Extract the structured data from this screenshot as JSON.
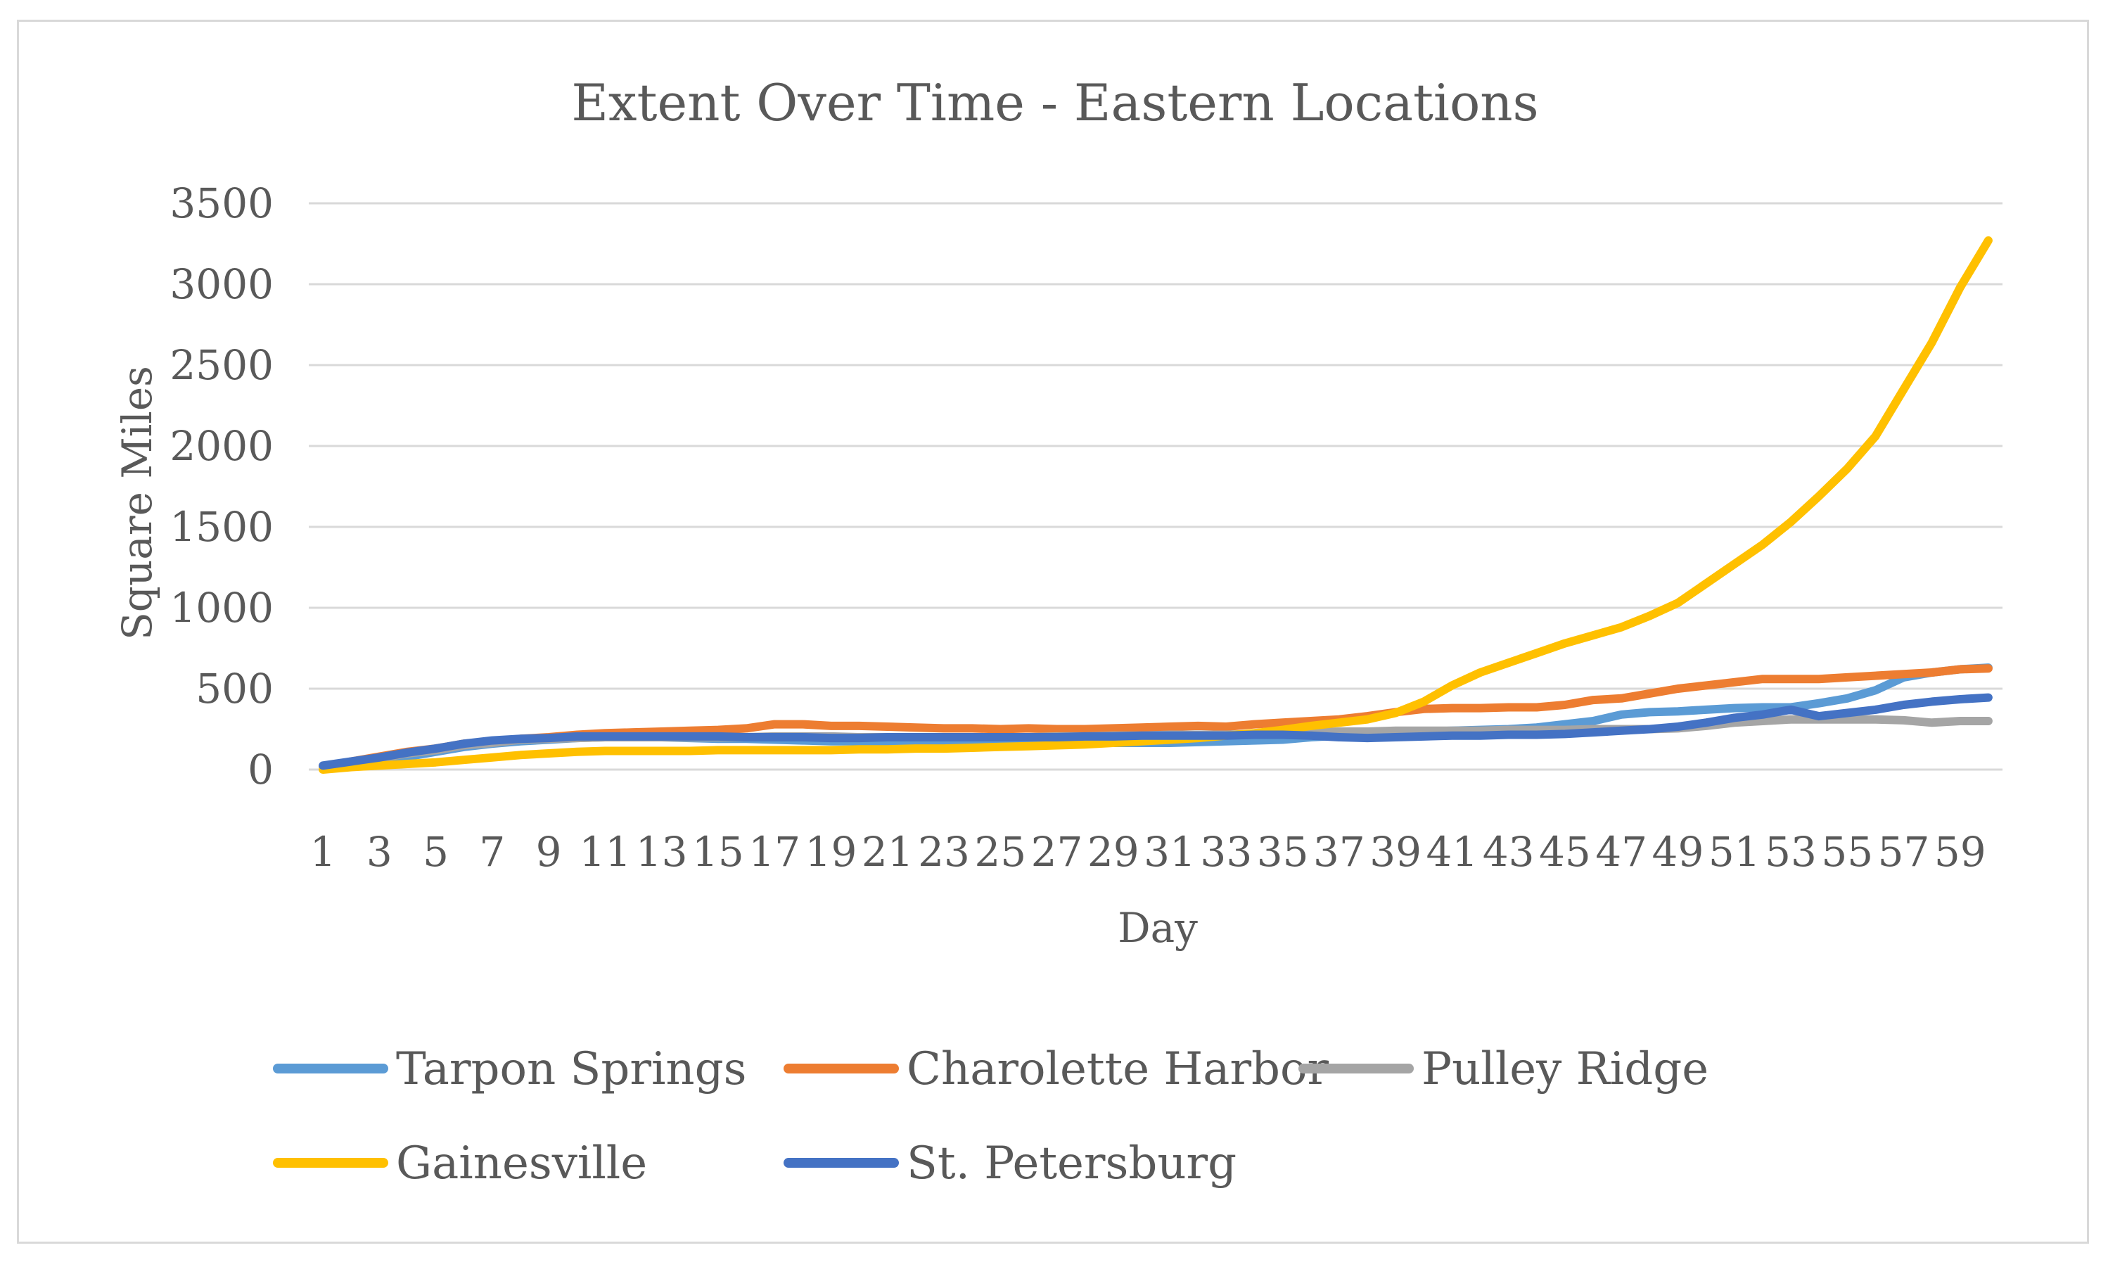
{
  "chart_data": {
    "type": "line",
    "title": "Extent Over Time - Eastern Locations",
    "xlabel": "Day",
    "ylabel": "Square Miles",
    "ylim": [
      0,
      3500
    ],
    "yticks": [
      0,
      500,
      1000,
      1500,
      2000,
      2500,
      3000,
      3500
    ],
    "x": [
      1,
      2,
      3,
      4,
      5,
      6,
      7,
      8,
      9,
      10,
      11,
      12,
      13,
      14,
      15,
      16,
      17,
      18,
      19,
      20,
      21,
      22,
      23,
      24,
      25,
      26,
      27,
      28,
      29,
      30,
      31,
      32,
      33,
      34,
      35,
      36,
      37,
      38,
      39,
      40,
      41,
      42,
      43,
      44,
      45,
      46,
      47,
      48,
      49,
      50,
      51,
      52,
      53,
      54,
      55,
      56,
      57,
      58,
      59,
      60
    ],
    "xtick_labels": [
      "1",
      "3",
      "5",
      "7",
      "9",
      "11",
      "13",
      "15",
      "17",
      "19",
      "21",
      "23",
      "25",
      "27",
      "29",
      "31",
      "33",
      "35",
      "37",
      "39",
      "41",
      "43",
      "45",
      "47",
      "49",
      "51",
      "53",
      "55",
      "57",
      "59"
    ],
    "grid": true,
    "legend_position": "bottom",
    "series": [
      {
        "name": "Tarpon Springs",
        "color": "#5b9bd5",
        "values": [
          20,
          40,
          60,
          80,
          110,
          140,
          160,
          175,
          185,
          195,
          200,
          200,
          200,
          195,
          190,
          190,
          185,
          180,
          175,
          175,
          175,
          170,
          165,
          165,
          160,
          155,
          160,
          165,
          165,
          165,
          165,
          170,
          175,
          180,
          185,
          200,
          210,
          220,
          230,
          235,
          240,
          245,
          250,
          260,
          280,
          300,
          340,
          355,
          360,
          370,
          380,
          385,
          385,
          410,
          440,
          490,
          570,
          600,
          620,
          630
        ]
      },
      {
        "name": "Charolette Harbor",
        "color": "#ed7d31",
        "values": [
          20,
          50,
          80,
          110,
          130,
          160,
          175,
          190,
          200,
          215,
          225,
          230,
          235,
          240,
          245,
          255,
          280,
          280,
          270,
          270,
          265,
          260,
          255,
          255,
          250,
          255,
          250,
          250,
          255,
          260,
          265,
          270,
          265,
          280,
          290,
          300,
          310,
          330,
          355,
          375,
          380,
          380,
          385,
          385,
          400,
          430,
          440,
          470,
          500,
          520,
          540,
          560,
          560,
          560,
          570,
          580,
          590,
          600,
          620,
          625
        ]
      },
      {
        "name": "Pulley Ridge",
        "color": "#a5a5a5",
        "values": [
          20,
          45,
          70,
          100,
          120,
          150,
          165,
          185,
          190,
          195,
          200,
          200,
          200,
          200,
          200,
          200,
          205,
          205,
          205,
          200,
          200,
          200,
          200,
          200,
          200,
          200,
          205,
          205,
          210,
          210,
          215,
          215,
          215,
          220,
          225,
          230,
          235,
          235,
          240,
          240,
          240,
          240,
          245,
          245,
          245,
          250,
          250,
          250,
          255,
          270,
          290,
          300,
          310,
          310,
          310,
          310,
          305,
          290,
          300,
          300
        ]
      },
      {
        "name": "Gainesville",
        "color": "#ffc000",
        "values": [
          0,
          15,
          25,
          35,
          45,
          60,
          75,
          90,
          100,
          110,
          115,
          115,
          115,
          115,
          120,
          120,
          120,
          120,
          120,
          125,
          125,
          130,
          130,
          135,
          140,
          145,
          150,
          155,
          165,
          175,
          185,
          195,
          210,
          225,
          245,
          270,
          290,
          310,
          350,
          420,
          520,
          600,
          660,
          720,
          780,
          830,
          880,
          950,
          1030,
          1150,
          1270,
          1390,
          1530,
          1690,
          1860,
          2060,
          2350,
          2640,
          2980,
          3270
        ]
      },
      {
        "name": "St. Petersburg",
        "color": "#4472c4",
        "values": [
          25,
          50,
          75,
          105,
          130,
          160,
          180,
          190,
          195,
          205,
          205,
          205,
          205,
          205,
          205,
          200,
          200,
          200,
          195,
          195,
          200,
          200,
          200,
          200,
          200,
          200,
          200,
          205,
          205,
          210,
          210,
          210,
          210,
          215,
          215,
          210,
          200,
          195,
          200,
          205,
          210,
          210,
          215,
          215,
          220,
          230,
          240,
          250,
          265,
          290,
          320,
          340,
          370,
          330,
          350,
          370,
          400,
          420,
          435,
          445
        ]
      }
    ]
  }
}
